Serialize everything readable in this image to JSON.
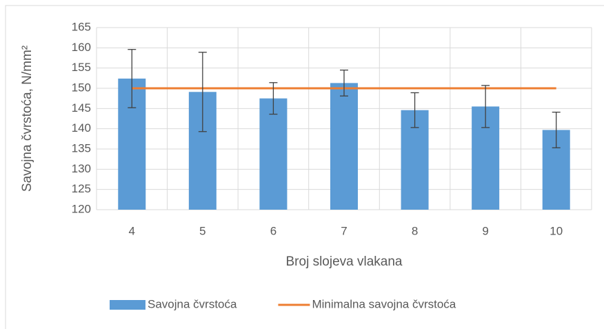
{
  "chart_data": {
    "type": "bar",
    "x_label": "Broj slojeva vlakana",
    "y_label": "Savojna čvrstoća, N/mm²",
    "categories": [
      "4",
      "5",
      "6",
      "7",
      "8",
      "9",
      "10"
    ],
    "series": [
      {
        "name": "Savojna čvrstoća",
        "type": "bar",
        "color": "#5b9bd5",
        "values": [
          152.4,
          149.1,
          147.5,
          151.3,
          144.6,
          145.5,
          139.7
        ],
        "errors": [
          7.2,
          9.8,
          3.9,
          3.2,
          4.3,
          5.2,
          4.4
        ]
      },
      {
        "name": "Minimalna savojna čvrstoća",
        "type": "line",
        "color": "#ed7d31",
        "values": [
          150,
          150,
          150,
          150,
          150,
          150,
          150
        ]
      }
    ],
    "ylim": [
      120,
      165
    ],
    "yticks": [
      120,
      125,
      130,
      135,
      140,
      145,
      150,
      155,
      160,
      165
    ],
    "grid": true,
    "legend": "bottom"
  }
}
